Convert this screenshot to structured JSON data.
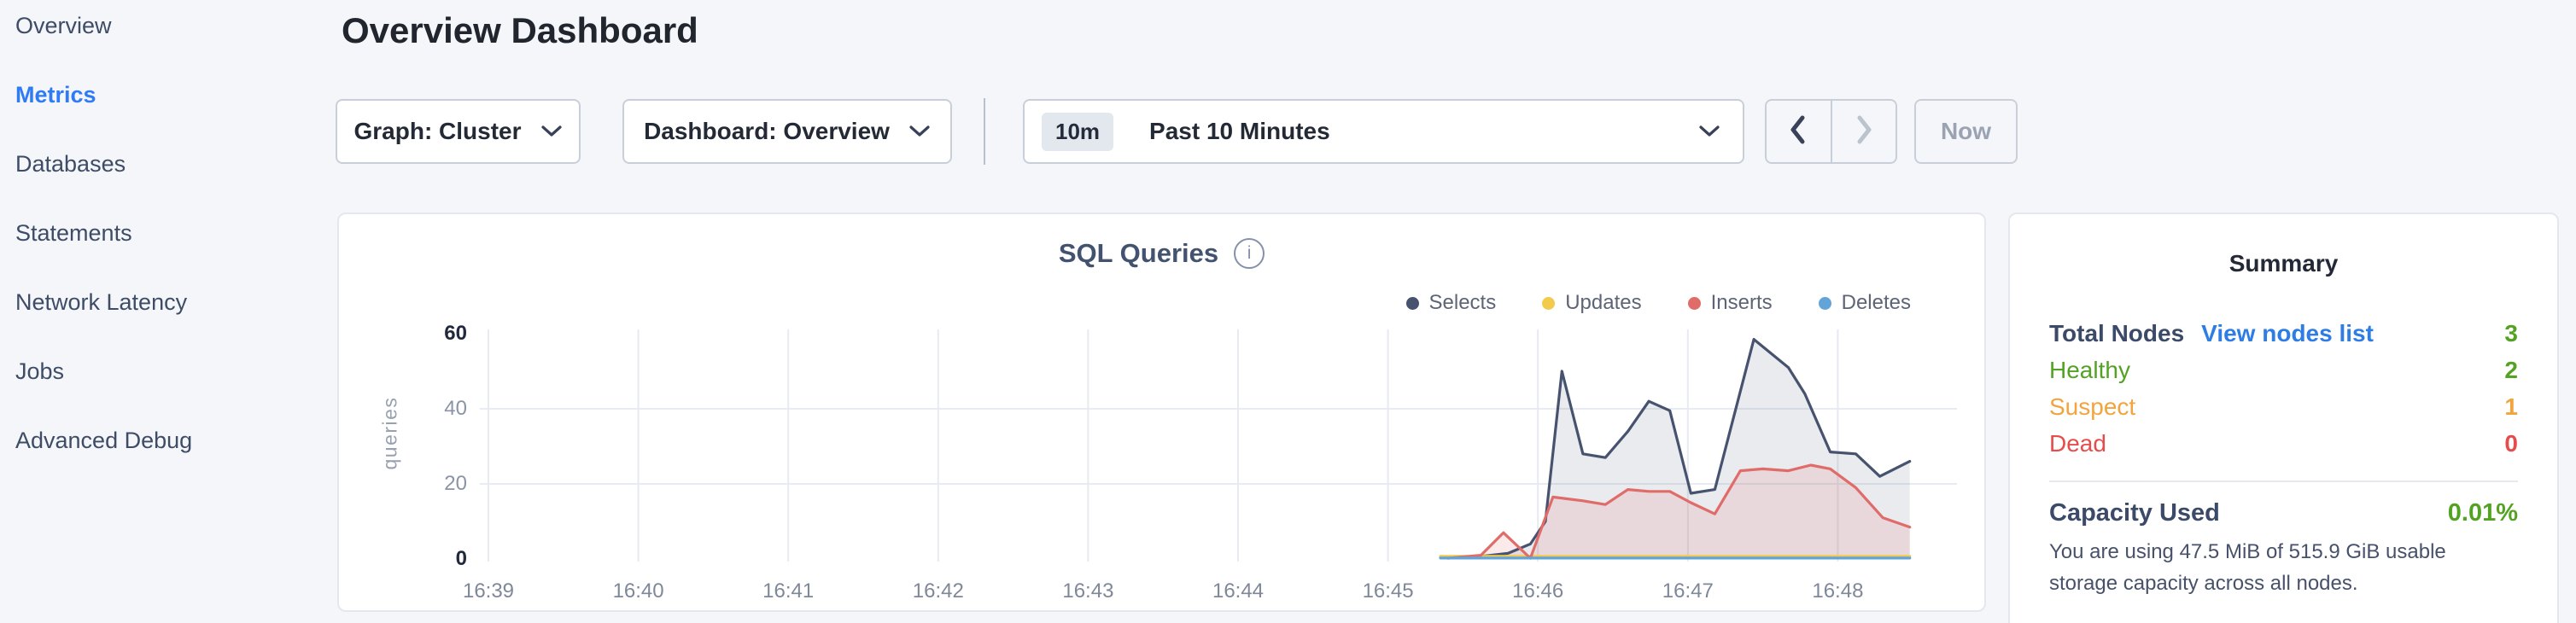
{
  "sidebar": {
    "items": [
      {
        "label": "Overview",
        "active": false
      },
      {
        "label": "Metrics",
        "active": true
      },
      {
        "label": "Databases",
        "active": false
      },
      {
        "label": "Statements",
        "active": false
      },
      {
        "label": "Network Latency",
        "active": false
      },
      {
        "label": "Jobs",
        "active": false
      },
      {
        "label": "Advanced Debug",
        "active": false
      }
    ]
  },
  "header": {
    "title": "Overview Dashboard"
  },
  "toolbar": {
    "graph_dropdown": "Graph: Cluster",
    "dashboard_dropdown": "Dashboard: Overview",
    "time_badge": "10m",
    "time_range": "Past 10 Minutes",
    "prev_arrow_enabled": true,
    "next_arrow_enabled": false,
    "now_label": "Now"
  },
  "chart_data": {
    "type": "area",
    "title": "SQL Queries",
    "info_icon": "i",
    "ylabel": "queries",
    "xlabel": "",
    "x_ticks": [
      "16:39",
      "16:40",
      "16:41",
      "16:42",
      "16:43",
      "16:44",
      "16:45",
      "16:46",
      "16:47",
      "16:48"
    ],
    "y_ticks": [
      0,
      20,
      40,
      60
    ],
    "ylim": [
      0,
      60
    ],
    "grid": true,
    "legend_position": "top-right",
    "series": [
      {
        "name": "Selects",
        "color": "#47536e",
        "fill": "rgba(71,88,114,0.12)",
        "points": [
          [
            6.35,
            0.4
          ],
          [
            6.6,
            0.6
          ],
          [
            6.8,
            1.5
          ],
          [
            6.95,
            4
          ],
          [
            7.05,
            10
          ],
          [
            7.16,
            50
          ],
          [
            7.3,
            28
          ],
          [
            7.45,
            27
          ],
          [
            7.6,
            34
          ],
          [
            7.74,
            42
          ],
          [
            7.88,
            39.5
          ],
          [
            8.02,
            17.5
          ],
          [
            8.18,
            18.5
          ],
          [
            8.44,
            58.5
          ],
          [
            8.67,
            51
          ],
          [
            8.78,
            44
          ],
          [
            8.95,
            28.5
          ],
          [
            9.12,
            28
          ],
          [
            9.28,
            22
          ],
          [
            9.48,
            26
          ]
        ]
      },
      {
        "name": "Updates",
        "color": "#f2ca4c",
        "fill": "none",
        "points": [
          [
            6.35,
            0.7
          ],
          [
            9.48,
            0.7
          ]
        ]
      },
      {
        "name": "Inserts",
        "color": "#e06c6a",
        "fill": "rgba(224,108,106,0.14)",
        "points": [
          [
            6.4,
            0.2
          ],
          [
            6.62,
            1
          ],
          [
            6.77,
            7
          ],
          [
            6.95,
            0.2
          ],
          [
            7.1,
            16.5
          ],
          [
            7.3,
            15.5
          ],
          [
            7.45,
            14.5
          ],
          [
            7.6,
            18.5
          ],
          [
            7.74,
            18
          ],
          [
            7.88,
            18
          ],
          [
            8.02,
            15
          ],
          [
            8.18,
            12
          ],
          [
            8.35,
            23.5
          ],
          [
            8.5,
            24
          ],
          [
            8.67,
            23.5
          ],
          [
            8.82,
            25
          ],
          [
            8.95,
            24
          ],
          [
            9.12,
            19
          ],
          [
            9.3,
            11
          ],
          [
            9.48,
            8.5
          ]
        ]
      },
      {
        "name": "Deletes",
        "color": "#62a3d8",
        "fill": "none",
        "points": [
          [
            6.35,
            0.25
          ],
          [
            9.48,
            0.25
          ]
        ]
      }
    ]
  },
  "summary": {
    "title": "Summary",
    "rows": [
      {
        "label": "Total Nodes",
        "bold": true,
        "link": "View nodes list",
        "value": "3",
        "label_color": "#3b4a68",
        "value_color": "#54a223"
      },
      {
        "label": "Healthy",
        "bold": false,
        "link": "",
        "value": "2",
        "label_color": "#54a223",
        "value_color": "#54a223"
      },
      {
        "label": "Suspect",
        "bold": false,
        "link": "",
        "value": "1",
        "label_color": "#f2a43d",
        "value_color": "#f2a43d"
      },
      {
        "label": "Dead",
        "bold": false,
        "link": "",
        "value": "0",
        "label_color": "#e64c4c",
        "value_color": "#e64c4c"
      }
    ],
    "capacity": {
      "label": "Capacity Used",
      "value": "0.01%",
      "description": "You are using 47.5 MiB of 515.9 GiB usable storage capacity across all nodes."
    }
  }
}
